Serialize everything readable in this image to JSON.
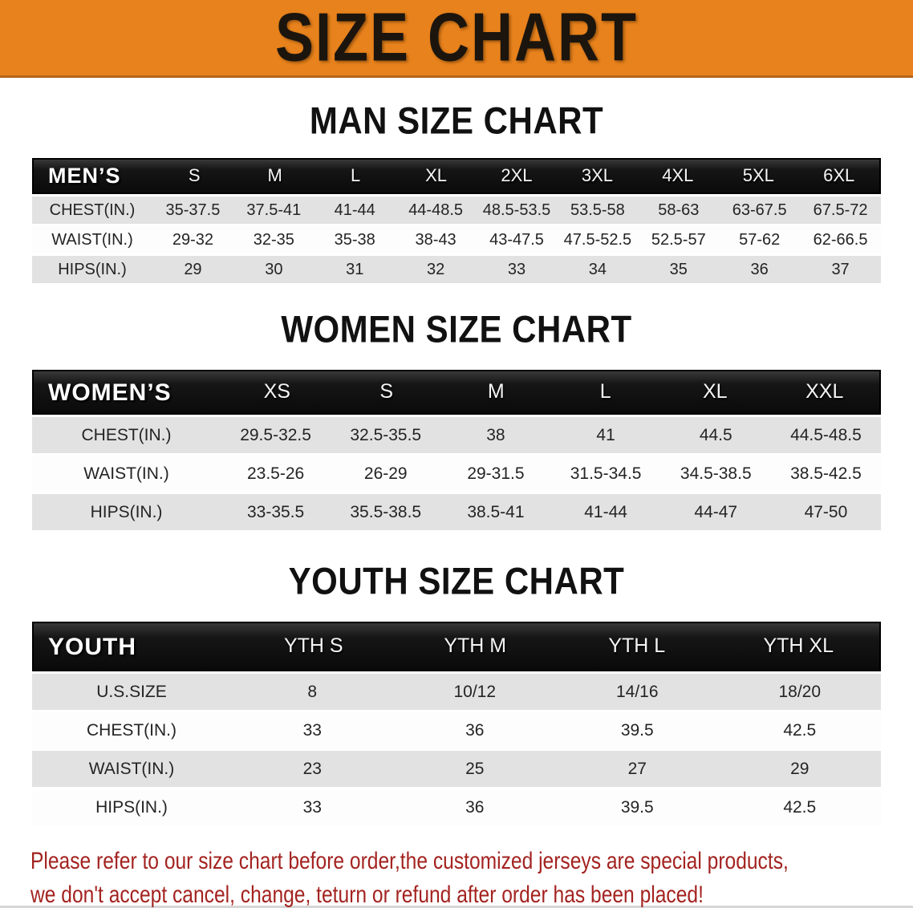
{
  "banner": {
    "title": "SIZE CHART",
    "bg": "#E8821C"
  },
  "sections": [
    {
      "heading": "MAN SIZE CHART",
      "table": {
        "corner": "MEN’S",
        "columns": [
          "S",
          "M",
          "L",
          "XL",
          "2XL",
          "3XL",
          "4XL",
          "5XL",
          "6XL"
        ],
        "rows": [
          {
            "label": "CHEST(IN.)",
            "values": [
              "35-37.5",
              "37.5-41",
              "41-44",
              "44-48.5",
              "48.5-53.5",
              "53.5-58",
              "58-63",
              "63-67.5",
              "67.5-72"
            ]
          },
          {
            "label": "WAIST(IN.)",
            "values": [
              "29-32",
              "32-35",
              "35-38",
              "38-43",
              "43-47.5",
              "47.5-52.5",
              "52.5-57",
              "57-62",
              "62-66.5"
            ]
          },
          {
            "label": "HIPS(IN.)",
            "values": [
              "29",
              "30",
              "31",
              "32",
              "33",
              "34",
              "35",
              "36",
              "37"
            ]
          }
        ]
      }
    },
    {
      "heading": "WOMEN SIZE CHART",
      "table": {
        "corner": "WOMEN’S",
        "columns": [
          "XS",
          "S",
          "M",
          "L",
          "XL",
          "XXL"
        ],
        "rows": [
          {
            "label": "CHEST(IN.)",
            "values": [
              "29.5-32.5",
              "32.5-35.5",
              "38",
              "41",
              "44.5",
              "44.5-48.5"
            ]
          },
          {
            "label": "WAIST(IN.)",
            "values": [
              "23.5-26",
              "26-29",
              "29-31.5",
              "31.5-34.5",
              "34.5-38.5",
              "38.5-42.5"
            ]
          },
          {
            "label": "HIPS(IN.)",
            "values": [
              "33-35.5",
              "35.5-38.5",
              "38.5-41",
              "41-44",
              "44-47",
              "47-50"
            ]
          }
        ]
      }
    },
    {
      "heading": "YOUTH SIZE CHART",
      "table": {
        "corner": "YOUTH",
        "columns": [
          "YTH S",
          "YTH M",
          "YTH L",
          "YTH XL"
        ],
        "rows": [
          {
            "label": "U.S.SIZE",
            "values": [
              "8",
              "10/12",
              "14/16",
              "18/20"
            ]
          },
          {
            "label": "CHEST(IN.)",
            "values": [
              "33",
              "36",
              "39.5",
              "42.5"
            ]
          },
          {
            "label": "WAIST(IN.)",
            "values": [
              "23",
              "25",
              "27",
              "29"
            ]
          },
          {
            "label": "HIPS(IN.)",
            "values": [
              "33",
              "36",
              "39.5",
              "42.5"
            ]
          }
        ]
      }
    }
  ],
  "footer": {
    "line1": "Please refer to our size chart before order,the customized jerseys are special products,",
    "line2": "we don't accept cancel, change, teturn or refund after order has been placed!",
    "color": "#A32320"
  }
}
